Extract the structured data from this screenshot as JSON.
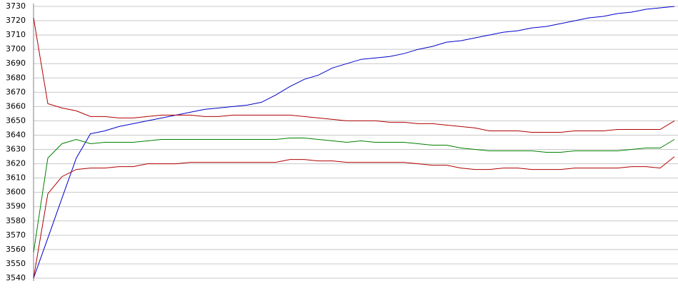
{
  "chart_data": {
    "type": "line",
    "categories": [
      null,
      null,
      null,
      null,
      null,
      null,
      null,
      null,
      null,
      null,
      null,
      null,
      null,
      null,
      null,
      null,
      null,
      null,
      null,
      null,
      null,
      null,
      null,
      null,
      null,
      null,
      null,
      null,
      null,
      null,
      null,
      null,
      null,
      null,
      null,
      null,
      null,
      null,
      null,
      null,
      null,
      null,
      null,
      null,
      null,
      null
    ],
    "series": [
      {
        "color": "#0000cc",
        "values": [
          3540,
          3568,
          3596,
          3624,
          3641,
          3643,
          3646,
          3648,
          3650,
          3652,
          3654,
          3656,
          3658,
          3659,
          3660,
          3661,
          3663,
          3668,
          3674,
          3679,
          3682,
          3687,
          3690,
          3693,
          3694,
          3695,
          3697,
          3700,
          3702,
          3705,
          3706,
          3708,
          3710,
          3712,
          3713,
          3715,
          3716,
          3718,
          3720,
          3722,
          3723,
          3725,
          3726,
          3728,
          3729,
          3730
        ]
      },
      {
        "color": "#b00000",
        "values": [
          3722,
          3662,
          3659,
          3657,
          3653,
          3653,
          3652,
          3652,
          3653,
          3654,
          3654,
          3654,
          3653,
          3653,
          3654,
          3654,
          3654,
          3654,
          3654,
          3653,
          3652,
          3651,
          3650,
          3650,
          3650,
          3649,
          3649,
          3648,
          3648,
          3647,
          3646,
          3645,
          3643,
          3643,
          3643,
          3642,
          3642,
          3642,
          3643,
          3643,
          3643,
          3644,
          3644,
          3644,
          3644,
          3650
        ]
      },
      {
        "color": "#008000",
        "values": [
          3558,
          3624,
          3634,
          3637,
          3634,
          3635,
          3635,
          3635,
          3636,
          3637,
          3637,
          3637,
          3637,
          3637,
          3637,
          3637,
          3637,
          3637,
          3638,
          3638,
          3637,
          3636,
          3635,
          3636,
          3635,
          3635,
          3635,
          3634,
          3633,
          3633,
          3631,
          3630,
          3629,
          3629,
          3629,
          3629,
          3628,
          3628,
          3629,
          3629,
          3629,
          3629,
          3630,
          3631,
          3631,
          3637
        ]
      },
      {
        "color": "#b00000",
        "values": [
          3540,
          3599,
          3611,
          3616,
          3617,
          3617,
          3618,
          3618,
          3620,
          3620,
          3620,
          3621,
          3621,
          3621,
          3621,
          3621,
          3621,
          3621,
          3623,
          3623,
          3622,
          3622,
          3621,
          3621,
          3621,
          3621,
          3621,
          3620,
          3619,
          3619,
          3617,
          3616,
          3616,
          3617,
          3617,
          3616,
          3616,
          3616,
          3617,
          3617,
          3617,
          3617,
          3618,
          3618,
          3617,
          3625
        ]
      }
    ],
    "ylim": [
      3540,
      3730
    ],
    "yticks": [
      3540,
      3550,
      3560,
      3570,
      3580,
      3590,
      3600,
      3610,
      3620,
      3630,
      3640,
      3650,
      3660,
      3670,
      3680,
      3690,
      3700,
      3710,
      3720,
      3730
    ],
    "grid": true
  }
}
